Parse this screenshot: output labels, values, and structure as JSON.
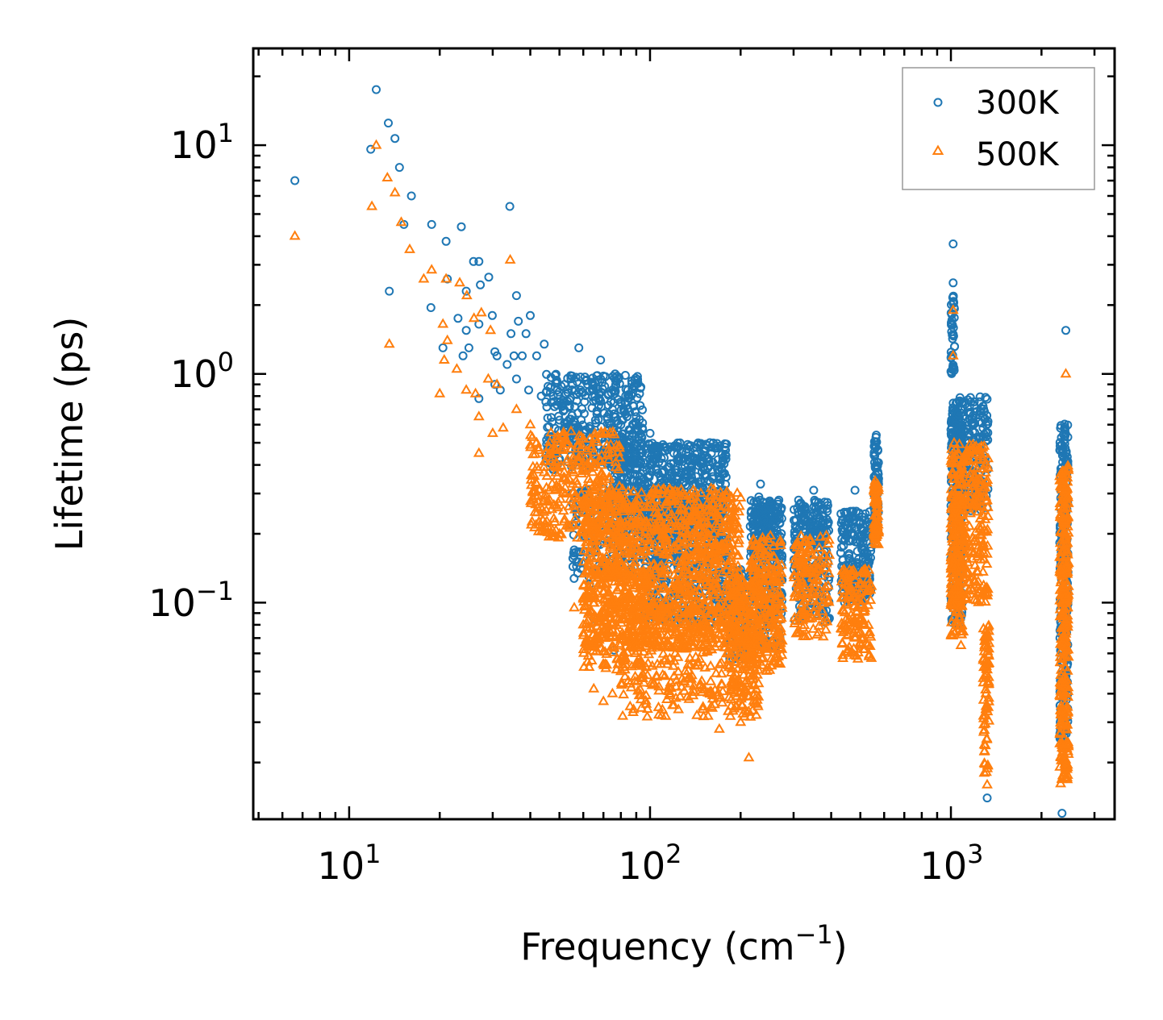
{
  "chart_data": {
    "type": "scatter",
    "xscale": "log",
    "yscale": "log",
    "xlabel": "Frequency (cm",
    "xlabel_sup": "−1",
    "xlabel_end": ")",
    "ylabel": "Lifetime (ps)",
    "xlim": [
      4.8,
      3500
    ],
    "ylim": [
      0.0113,
      26.5
    ],
    "x_ticks": [
      {
        "value": 10,
        "base": "10",
        "exp": "1"
      },
      {
        "value": 100,
        "base": "10",
        "exp": "2"
      },
      {
        "value": 1000,
        "base": "10",
        "exp": "3"
      }
    ],
    "y_ticks": [
      {
        "value": 10,
        "base": "10",
        "exp": "1"
      },
      {
        "value": 1,
        "base": "10",
        "exp": "0"
      },
      {
        "value": 0.1,
        "base": "10",
        "exp": "−1"
      }
    ],
    "legend_position": "top-right",
    "series": [
      {
        "name": "300K",
        "marker": "circle",
        "color": "#1f77b4",
        "points": [
          [
            6.6,
            7.0
          ],
          [
            11.8,
            9.6
          ],
          [
            12.3,
            17.5
          ],
          [
            13.5,
            12.5
          ],
          [
            14.2,
            10.7
          ],
          [
            14.7,
            8.0
          ],
          [
            13.6,
            2.3
          ],
          [
            15.2,
            4.5
          ],
          [
            16.1,
            6.0
          ],
          [
            18.8,
            4.5
          ],
          [
            18.7,
            1.95
          ],
          [
            21.0,
            3.8
          ],
          [
            23.6,
            4.4
          ],
          [
            21.2,
            2.6
          ],
          [
            25.9,
            3.1
          ],
          [
            27.0,
            3.1
          ],
          [
            24.5,
            2.3
          ],
          [
            27.3,
            2.45
          ],
          [
            29.1,
            2.65
          ],
          [
            34.2,
            5.4
          ],
          [
            23.0,
            1.75
          ],
          [
            24.5,
            1.55
          ],
          [
            27.0,
            1.65
          ],
          [
            29.9,
            1.8
          ],
          [
            36.0,
            2.2
          ],
          [
            36.5,
            1.7
          ],
          [
            40.0,
            1.8
          ],
          [
            38.7,
            1.5
          ],
          [
            34.5,
            1.5
          ],
          [
            20.5,
            1.3
          ],
          [
            23.9,
            1.2
          ],
          [
            25.0,
            1.3
          ],
          [
            30.5,
            1.25
          ],
          [
            31.0,
            1.2
          ],
          [
            33.5,
            1.1
          ],
          [
            35.3,
            1.2
          ],
          [
            37.6,
            1.2
          ],
          [
            42.0,
            1.2
          ],
          [
            44.5,
            1.35
          ],
          [
            27.0,
            0.78
          ],
          [
            30.5,
            0.9
          ],
          [
            31.8,
            0.85
          ],
          [
            36.0,
            0.95
          ],
          [
            39.5,
            0.85
          ],
          [
            43.5,
            0.8
          ],
          [
            47.0,
            0.75
          ],
          [
            52.0,
            0.9
          ],
          [
            58.0,
            1.3
          ],
          [
            68.5,
            1.15
          ],
          [
            62.0,
            0.9
          ],
          [
            75.0,
            0.7
          ],
          [
            80.0,
            0.6
          ],
          [
            90.0,
            0.65
          ],
          [
            100.0,
            0.55
          ],
          [
            120.0,
            0.45
          ],
          [
            140.0,
            0.43
          ],
          [
            170.0,
            0.38
          ],
          [
            52.0,
            0.55
          ],
          [
            58.0,
            0.45
          ],
          [
            62.0,
            0.3
          ],
          [
            66.0,
            0.2
          ],
          [
            56.0,
            0.17
          ],
          [
            60.0,
            0.15
          ],
          [
            63.0,
            0.12
          ],
          [
            65.0,
            0.085
          ],
          [
            76.0,
            0.062
          ],
          [
            100.0,
            0.2
          ],
          [
            200.0,
            0.06
          ],
          [
            230.0,
            0.29
          ],
          [
            233.0,
            0.33
          ],
          [
            350.0,
            0.31
          ],
          [
            480.0,
            0.31
          ],
          [
            565.0,
            0.54
          ],
          [
            1017.0,
            3.7
          ],
          [
            1017.0,
            2.5
          ],
          [
            1320.0,
            0.014
          ],
          [
            2340.0,
            0.012
          ],
          [
            2410.0,
            1.55
          ]
        ]
      },
      {
        "name": "500K",
        "marker": "triangle",
        "color": "#ff7f0e",
        "points": [
          [
            6.6,
            4.0
          ],
          [
            11.9,
            5.4
          ],
          [
            12.3,
            10.0
          ],
          [
            13.4,
            7.2
          ],
          [
            13.6,
            1.35
          ],
          [
            14.2,
            6.2
          ],
          [
            14.9,
            4.6
          ],
          [
            15.9,
            3.5
          ],
          [
            17.7,
            2.6
          ],
          [
            18.8,
            2.85
          ],
          [
            20.5,
            1.65
          ],
          [
            21.0,
            2.6
          ],
          [
            21.2,
            1.4
          ],
          [
            23.3,
            2.5
          ],
          [
            24.6,
            2.2
          ],
          [
            26.0,
            1.75
          ],
          [
            27.5,
            1.85
          ],
          [
            29.5,
            1.55
          ],
          [
            34.3,
            3.15
          ],
          [
            20.7,
            1.15
          ],
          [
            22.8,
            1.05
          ],
          [
            24.5,
            0.85
          ],
          [
            26.3,
            0.82
          ],
          [
            20.0,
            0.82
          ],
          [
            29.0,
            0.95
          ],
          [
            31.0,
            0.9
          ],
          [
            27.0,
            0.65
          ],
          [
            30.0,
            0.55
          ],
          [
            32.5,
            0.58
          ],
          [
            27.0,
            0.45
          ],
          [
            36.0,
            0.7
          ],
          [
            40.0,
            0.6
          ],
          [
            42.0,
            0.5
          ],
          [
            45.0,
            0.45
          ],
          [
            48.0,
            0.4
          ],
          [
            52.0,
            0.35
          ],
          [
            60.0,
            0.28
          ],
          [
            70.0,
            0.25
          ],
          [
            80.0,
            0.22
          ],
          [
            100.0,
            0.18
          ],
          [
            130.0,
            0.16
          ],
          [
            50.0,
            0.2
          ],
          [
            56.0,
            0.095
          ],
          [
            60.0,
            0.08
          ],
          [
            62.0,
            0.055
          ],
          [
            65.0,
            0.042
          ],
          [
            70.0,
            0.037
          ],
          [
            75.0,
            0.04
          ],
          [
            80.0,
            0.05
          ],
          [
            90.0,
            0.065
          ],
          [
            100.0,
            0.07
          ],
          [
            130.0,
            0.045
          ],
          [
            150.0,
            0.035
          ],
          [
            170.0,
            0.028
          ],
          [
            200.0,
            0.03
          ],
          [
            213.0,
            0.021
          ],
          [
            230.0,
            0.15
          ],
          [
            250.0,
            0.085
          ],
          [
            350.0,
            0.11
          ],
          [
            470.0,
            0.06
          ],
          [
            480.0,
            0.07
          ],
          [
            560.0,
            0.34
          ],
          [
            1017.0,
            1.9
          ],
          [
            1017.0,
            1.2
          ],
          [
            1080.0,
            0.065
          ],
          [
            1320.0,
            0.016
          ],
          [
            2340.0,
            0.017
          ],
          [
            2410.0,
            1.0
          ]
        ]
      }
    ],
    "clusters": [
      {
        "series": 0,
        "x": [
          45,
          95
        ],
        "ylog": [
          -0.42,
          0.0
        ],
        "n": 420
      },
      {
        "series": 0,
        "x": [
          75,
          180
        ],
        "ylog": [
          -0.7,
          -0.3
        ],
        "n": 650
      },
      {
        "series": 0,
        "x": [
          95,
          180
        ],
        "ylog": [
          -1.1,
          -0.55
        ],
        "n": 420
      },
      {
        "series": 0,
        "x": [
          55,
          110
        ],
        "ylog": [
          -0.9,
          -0.5
        ],
        "n": 200
      },
      {
        "series": 0,
        "x": [
          183,
          210
        ],
        "ylog": [
          -1.25,
          -0.85
        ],
        "n": 110
      },
      {
        "series": 0,
        "x": [
          215,
          275
        ],
        "ylog": [
          -0.8,
          -0.55
        ],
        "n": 150
      },
      {
        "series": 0,
        "x": [
          215,
          275
        ],
        "ylog": [
          -1.2,
          -0.6
        ],
        "n": 220
      },
      {
        "series": 0,
        "x": [
          300,
          395
        ],
        "ylog": [
          -0.8,
          -0.55
        ],
        "n": 140
      },
      {
        "series": 0,
        "x": [
          300,
          395
        ],
        "ylog": [
          -1.1,
          -0.8
        ],
        "n": 90
      },
      {
        "series": 0,
        "x": [
          430,
          545
        ],
        "ylog": [
          -1.0,
          -0.6
        ],
        "n": 180
      },
      {
        "series": 0,
        "x": [
          555,
          575
        ],
        "ylog": [
          -0.7,
          -0.27
        ],
        "n": 80
      },
      {
        "series": 0,
        "x": [
          1000,
          1330
        ],
        "ylog": [
          -0.6,
          -0.1
        ],
        "n": 260
      },
      {
        "series": 0,
        "x": [
          1000,
          1090
        ],
        "ylog": [
          -1.1,
          -0.1
        ],
        "n": 200
      },
      {
        "series": 0,
        "x": [
          1000,
          1030
        ],
        "ylog": [
          0.0,
          0.35
        ],
        "n": 40
      },
      {
        "series": 0,
        "x": [
          2300,
          2450
        ],
        "ylog": [
          -1.6,
          -0.2
        ],
        "n": 260
      },
      {
        "series": 1,
        "x": [
          40,
          80
        ],
        "ylog": [
          -0.72,
          -0.25
        ],
        "n": 320
      },
      {
        "series": 1,
        "x": [
          60,
          200
        ],
        "ylog": [
          -1.2,
          -0.5
        ],
        "n": 1100
      },
      {
        "series": 1,
        "x": [
          80,
          220
        ],
        "ylog": [
          -1.5,
          -1.0
        ],
        "n": 380
      },
      {
        "series": 1,
        "x": [
          60,
          100
        ],
        "ylog": [
          -1.3,
          -0.85
        ],
        "n": 160
      },
      {
        "series": 1,
        "x": [
          185,
          230
        ],
        "ylog": [
          -1.5,
          -0.9
        ],
        "n": 160
      },
      {
        "series": 1,
        "x": [
          215,
          275
        ],
        "ylog": [
          -1.3,
          -0.7
        ],
        "n": 240
      },
      {
        "series": 1,
        "x": [
          300,
          395
        ],
        "ylog": [
          -1.15,
          -0.7
        ],
        "n": 150
      },
      {
        "series": 1,
        "x": [
          430,
          545
        ],
        "ylog": [
          -1.25,
          -0.85
        ],
        "n": 150
      },
      {
        "series": 1,
        "x": [
          555,
          575
        ],
        "ylog": [
          -0.75,
          -0.48
        ],
        "n": 80
      },
      {
        "series": 1,
        "x": [
          1000,
          1330
        ],
        "ylog": [
          -1.0,
          -0.3
        ],
        "n": 300
      },
      {
        "series": 1,
        "x": [
          1000,
          1100
        ],
        "ylog": [
          -1.15,
          -0.5
        ],
        "n": 160
      },
      {
        "series": 1,
        "x": [
          1280,
          1340
        ],
        "ylog": [
          -1.75,
          -1.1
        ],
        "n": 80
      },
      {
        "series": 1,
        "x": [
          2300,
          2460
        ],
        "ylog": [
          -1.8,
          -0.4
        ],
        "n": 320
      }
    ]
  }
}
